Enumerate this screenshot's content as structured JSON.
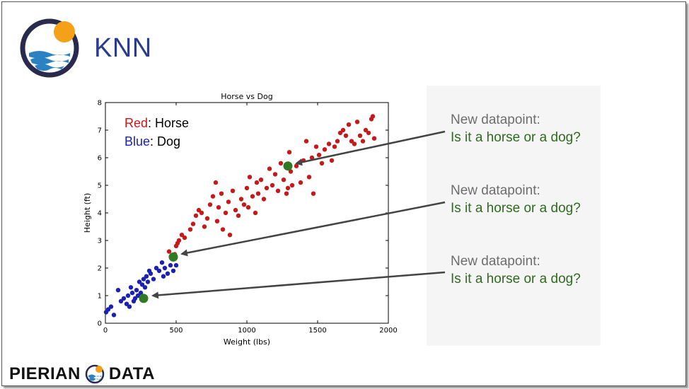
{
  "slide": {
    "title": "KNN"
  },
  "footer": {
    "brand_left": "PIERIAN",
    "brand_right": "DATA"
  },
  "legend": {
    "red_word": "Red",
    "red_rest": ": Horse",
    "blue_word": "Blue",
    "blue_rest": ": Dog"
  },
  "callouts": [
    {
      "line1": "New datapoint:",
      "line2": "Is it a horse or a dog?"
    },
    {
      "line1": "New datapoint:",
      "line2": "Is it a horse or a dog?"
    },
    {
      "line1": "New datapoint:",
      "line2": "Is it a horse or a dog?"
    }
  ],
  "colors": {
    "horse": "#c41a1a",
    "dog": "#1c22b0",
    "new_point": "#2f7a22",
    "title": "#2b3c8c",
    "arrow": "#444444"
  },
  "chart_data": {
    "type": "scatter",
    "title": "Horse vs Dog",
    "xlabel": "Weight (lbs)",
    "ylabel": "Height (ft)",
    "xlim": [
      0,
      2000
    ],
    "ylim": [
      0,
      8
    ],
    "xticks": [
      0,
      500,
      1000,
      1500,
      2000
    ],
    "yticks": [
      0,
      1,
      2,
      3,
      4,
      5,
      6,
      7,
      8
    ],
    "grid": false,
    "series": [
      {
        "name": "Horse",
        "points": [
          [
            450,
            2.6
          ],
          [
            480,
            2.4
          ],
          [
            490,
            2.5
          ],
          [
            500,
            2.8
          ],
          [
            510,
            2.9
          ],
          [
            520,
            3.0
          ],
          [
            540,
            3.2
          ],
          [
            560,
            3.1
          ],
          [
            600,
            3.4
          ],
          [
            620,
            3.6
          ],
          [
            640,
            3.9
          ],
          [
            660,
            4.1
          ],
          [
            680,
            4.0
          ],
          [
            700,
            3.5
          ],
          [
            720,
            3.8
          ],
          [
            740,
            4.3
          ],
          [
            760,
            4.6
          ],
          [
            780,
            5.1
          ],
          [
            790,
            3.7
          ],
          [
            800,
            4.2
          ],
          [
            820,
            4.7
          ],
          [
            830,
            3.4
          ],
          [
            850,
            4.0
          ],
          [
            870,
            4.4
          ],
          [
            880,
            3.2
          ],
          [
            900,
            4.8
          ],
          [
            920,
            4.1
          ],
          [
            940,
            3.9
          ],
          [
            960,
            4.5
          ],
          [
            980,
            4.3
          ],
          [
            1000,
            4.9
          ],
          [
            1010,
            4.2
          ],
          [
            1020,
            5.3
          ],
          [
            1040,
            4.6
          ],
          [
            1060,
            4.0
          ],
          [
            1070,
            5.1
          ],
          [
            1080,
            4.7
          ],
          [
            1100,
            5.2
          ],
          [
            1120,
            4.5
          ],
          [
            1140,
            4.9
          ],
          [
            1160,
            5.6
          ],
          [
            1180,
            5.0
          ],
          [
            1200,
            5.4
          ],
          [
            1220,
            4.8
          ],
          [
            1240,
            5.8
          ],
          [
            1260,
            5.2
          ],
          [
            1280,
            4.7
          ],
          [
            1290,
            4.9
          ],
          [
            1300,
            6.2
          ],
          [
            1310,
            5.5
          ],
          [
            1320,
            5.0
          ],
          [
            1350,
            5.7
          ],
          [
            1380,
            5.1
          ],
          [
            1400,
            5.9
          ],
          [
            1420,
            6.6
          ],
          [
            1440,
            5.3
          ],
          [
            1460,
            6.0
          ],
          [
            1470,
            4.7
          ],
          [
            1490,
            6.4
          ],
          [
            1510,
            6.1
          ],
          [
            1530,
            5.8
          ],
          [
            1550,
            6.3
          ],
          [
            1580,
            6.5
          ],
          [
            1600,
            5.9
          ],
          [
            1620,
            6.4
          ],
          [
            1640,
            6.6
          ],
          [
            1660,
            6.9
          ],
          [
            1680,
            7.0
          ],
          [
            1700,
            6.8
          ],
          [
            1720,
            7.2
          ],
          [
            1740,
            6.6
          ],
          [
            1760,
            6.5
          ],
          [
            1780,
            7.3
          ],
          [
            1800,
            6.8
          ],
          [
            1820,
            6.6
          ],
          [
            1840,
            7.0
          ],
          [
            1860,
            6.9
          ],
          [
            1880,
            7.4
          ],
          [
            1890,
            7.5
          ],
          [
            1900,
            6.7
          ]
        ]
      },
      {
        "name": "Dog",
        "points": [
          [
            5,
            0.4
          ],
          [
            20,
            0.5
          ],
          [
            40,
            0.6
          ],
          [
            60,
            0.3
          ],
          [
            90,
            1.2
          ],
          [
            110,
            0.8
          ],
          [
            130,
            0.9
          ],
          [
            150,
            0.7
          ],
          [
            160,
            1.0
          ],
          [
            170,
            0.6
          ],
          [
            180,
            1.3
          ],
          [
            190,
            1.1
          ],
          [
            200,
            0.8
          ],
          [
            210,
            0.9
          ],
          [
            220,
            1.2
          ],
          [
            230,
            1.0
          ],
          [
            240,
            1.5
          ],
          [
            250,
            1.1
          ],
          [
            260,
            1.4
          ],
          [
            270,
            1.6
          ],
          [
            280,
            1.3
          ],
          [
            290,
            1.7
          ],
          [
            300,
            1.5
          ],
          [
            310,
            1.9
          ],
          [
            320,
            1.8
          ],
          [
            340,
            1.6
          ],
          [
            360,
            2.0
          ],
          [
            380,
            1.9
          ],
          [
            400,
            2.2
          ],
          [
            410,
            1.7
          ],
          [
            420,
            2.0
          ],
          [
            440,
            1.8
          ],
          [
            460,
            2.1
          ],
          [
            480,
            1.9
          ],
          [
            500,
            2.1
          ]
        ]
      },
      {
        "name": "New datapoint",
        "points": [
          [
            1290,
            5.7
          ],
          [
            480,
            2.4
          ],
          [
            270,
            0.9
          ]
        ]
      }
    ]
  }
}
